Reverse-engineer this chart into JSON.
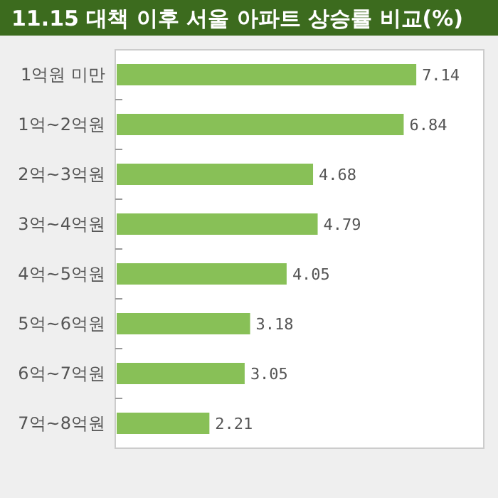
{
  "chart_data": {
    "type": "bar",
    "orientation": "horizontal",
    "title": "11.15 대책 이후 서울 아파트 상승률 비교(%)",
    "categories": [
      "1억원 미만",
      "1억~2억원",
      "2억~3억원",
      "3억~4억원",
      "4억~5억원",
      "5억~6억원",
      "6억~7억원",
      "7억~8억원"
    ],
    "values": [
      7.14,
      6.84,
      4.68,
      4.79,
      4.05,
      3.18,
      3.05,
      2.21
    ],
    "color": "#88c057",
    "data_labels": true
  }
}
